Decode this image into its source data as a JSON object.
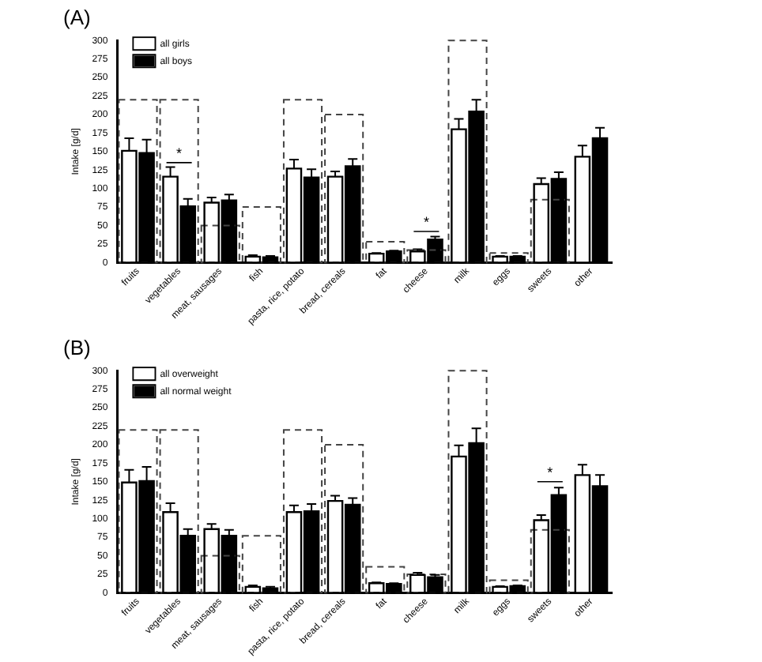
{
  "chart_data": [
    {
      "type": "bar",
      "title": "(A)",
      "ylabel": "Intake [g/d]",
      "categories": [
        "fruits",
        "vegetables",
        "meat, sausages",
        "fish",
        "pasta, rice, potato",
        "bread, cereals",
        "fat",
        "cheese",
        "milk",
        "eggs",
        "sweets",
        "other"
      ],
      "series": [
        {
          "name": "all girls",
          "color": "#ffffff",
          "values": [
            151,
            116,
            81,
            8,
            127,
            116,
            12,
            15,
            180,
            8,
            106,
            143
          ],
          "errors": [
            [
              151,
              168
            ],
            [
              116,
              129
            ],
            [
              81,
              88
            ],
            [
              8,
              10
            ],
            [
              127,
              139
            ],
            [
              116,
              123
            ],
            [
              12,
              13
            ],
            [
              15,
              18
            ],
            [
              180,
              194
            ],
            [
              8,
              9
            ],
            [
              106,
              114
            ],
            [
              143,
              158
            ]
          ]
        },
        {
          "name": "all boys",
          "color": "#000000",
          "values": [
            148,
            76,
            84,
            7,
            115,
            130,
            15,
            31,
            204,
            8,
            113,
            168
          ],
          "errors": [
            [
              148,
              166
            ],
            [
              76,
              86
            ],
            [
              84,
              92
            ],
            [
              7,
              9
            ],
            [
              115,
              126
            ],
            [
              130,
              140
            ],
            [
              15,
              16
            ],
            [
              31,
              35
            ],
            [
              204,
              220
            ],
            [
              8,
              9
            ],
            [
              113,
              122
            ],
            [
              168,
              182
            ]
          ]
        },
        {
          "type": "bar",
          "color": "#444444",
          "line_style": "dashed",
          "base": [
            0,
            0,
            0,
            0,
            0,
            0,
            0,
            0,
            0,
            0,
            0,
            null
          ],
          "values": [
            220,
            220,
            50,
            75,
            220,
            200,
            28,
            17,
            300,
            13,
            85,
            null
          ]
        }
      ],
      "ylim": [
        0,
        300
      ],
      "yticks": [
        0,
        25,
        50,
        75,
        100,
        125,
        150,
        175,
        200,
        225,
        250,
        275,
        300
      ],
      "grid": false,
      "legend": "top left",
      "annotations": [
        {
          "text": "*",
          "x": "vegetables",
          "y": 135
        },
        {
          "text": "*",
          "x": "cheese",
          "y": 42
        }
      ]
    },
    {
      "type": "bar",
      "title": "(B)",
      "ylabel": "Intake [g/d]",
      "categories": [
        "fruits",
        "vegetables",
        "meat, sausages",
        "fish",
        "pasta, rice, potato",
        "bread, cereals",
        "fat",
        "cheese",
        "milk",
        "eggs",
        "sweets",
        "other"
      ],
      "series": [
        {
          "name": "all overweight",
          "color": "#ffffff",
          "values": [
            149,
            109,
            86,
            8,
            109,
            124,
            13,
            24,
            184,
            8,
            98,
            159
          ],
          "errors": [
            [
              149,
              166
            ],
            [
              109,
              121
            ],
            [
              86,
              93
            ],
            [
              8,
              10
            ],
            [
              109,
              118
            ],
            [
              124,
              131
            ],
            [
              13,
              14
            ],
            [
              24,
              27
            ],
            [
              184,
              199
            ],
            [
              8,
              9
            ],
            [
              98,
              105
            ],
            [
              159,
              173
            ]
          ]
        },
        {
          "name": "all normal weight",
          "color": "#000000",
          "values": [
            151,
            77,
            77,
            6,
            110,
            119,
            12,
            21,
            202,
            9,
            132,
            144
          ],
          "errors": [
            [
              151,
              170
            ],
            [
              77,
              86
            ],
            [
              77,
              85
            ],
            [
              6,
              8
            ],
            [
              110,
              120
            ],
            [
              119,
              128
            ],
            [
              12,
              13
            ],
            [
              21,
              24
            ],
            [
              202,
              222
            ],
            [
              9,
              10
            ],
            [
              132,
              142
            ],
            [
              144,
              159
            ]
          ]
        },
        {
          "type": "bar",
          "color": "#444444",
          "line_style": "dashed",
          "base": [
            0,
            0,
            0,
            0,
            0,
            0,
            0,
            0,
            0,
            0,
            0,
            null
          ],
          "values": [
            220,
            220,
            50,
            77,
            220,
            200,
            35,
            25,
            300,
            17,
            85,
            null
          ]
        }
      ],
      "ylim": [
        0,
        300
      ],
      "yticks": [
        0,
        25,
        50,
        75,
        100,
        125,
        150,
        175,
        200,
        225,
        250,
        275,
        300
      ],
      "grid": false,
      "legend": "top left",
      "annotations": [
        {
          "text": "*",
          "x": "sweets",
          "y": 150
        }
      ]
    }
  ]
}
